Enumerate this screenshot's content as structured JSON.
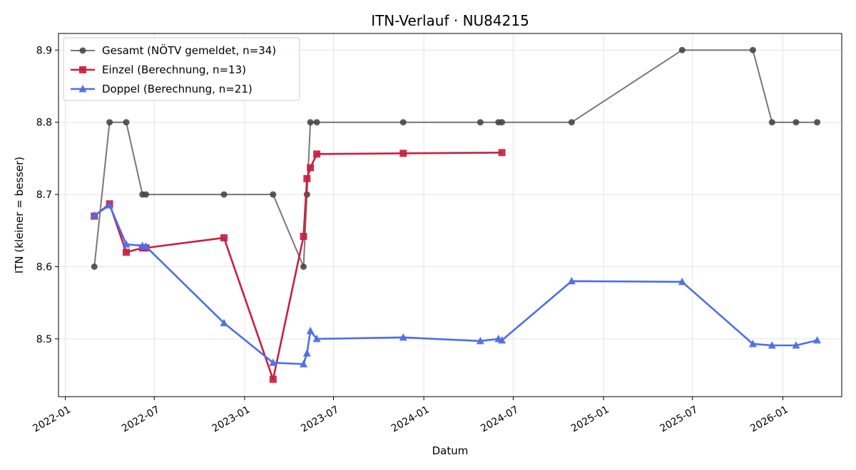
{
  "chart_data": {
    "type": "line",
    "title": "ITN-Verlauf · NU84215",
    "xlabel": "Datum",
    "ylabel": "ITN  (kleiner = besser)",
    "x_type": "date",
    "xlim": [
      "2021-12-18",
      "2026-05-01"
    ],
    "ylim": [
      8.42,
      8.923
    ],
    "x_ticks": [
      {
        "date": "2022-01-01",
        "label": "2022-01"
      },
      {
        "date": "2022-07-01",
        "label": "2022-07"
      },
      {
        "date": "2023-01-01",
        "label": "2023-01"
      },
      {
        "date": "2023-07-01",
        "label": "2023-07"
      },
      {
        "date": "2024-01-01",
        "label": "2024-01"
      },
      {
        "date": "2024-07-01",
        "label": "2024-07"
      },
      {
        "date": "2025-01-01",
        "label": "2025-01"
      },
      {
        "date": "2025-07-01",
        "label": "2025-07"
      },
      {
        "date": "2026-01-01",
        "label": "2026-01"
      }
    ],
    "y_ticks": [
      {
        "value": 8.5,
        "label": "8.5"
      },
      {
        "value": 8.6,
        "label": "8.6"
      },
      {
        "value": 8.7,
        "label": "8.7"
      },
      {
        "value": 8.8,
        "label": "8.8"
      },
      {
        "value": 8.9,
        "label": "8.9"
      }
    ],
    "grid": true,
    "legend_position": "top-left",
    "series": [
      {
        "name": "Gesamt (NÖTV gemeldet, n=34)",
        "color": "#444444",
        "marker": "circle",
        "points": [
          {
            "x": "2022-03-01",
            "y": 8.6
          },
          {
            "x": "2022-04-01",
            "y": 8.8
          },
          {
            "x": "2022-05-05",
            "y": 8.8
          },
          {
            "x": "2022-06-07",
            "y": 8.7
          },
          {
            "x": "2022-06-14",
            "y": 8.7
          },
          {
            "x": "2022-11-20",
            "y": 8.7
          },
          {
            "x": "2023-02-28",
            "y": 8.7
          },
          {
            "x": "2023-05-01",
            "y": 8.6
          },
          {
            "x": "2023-05-08",
            "y": 8.7
          },
          {
            "x": "2023-05-15",
            "y": 8.8
          },
          {
            "x": "2023-05-28",
            "y": 8.8
          },
          {
            "x": "2023-11-20",
            "y": 8.8
          },
          {
            "x": "2024-04-25",
            "y": 8.8
          },
          {
            "x": "2024-06-01",
            "y": 8.8
          },
          {
            "x": "2024-06-08",
            "y": 8.8
          },
          {
            "x": "2024-10-28",
            "y": 8.8
          },
          {
            "x": "2025-06-10",
            "y": 8.9
          },
          {
            "x": "2025-11-01",
            "y": 8.9
          },
          {
            "x": "2025-12-10",
            "y": 8.8
          },
          {
            "x": "2026-01-28",
            "y": 8.8
          },
          {
            "x": "2026-03-12",
            "y": 8.8
          }
        ]
      },
      {
        "name": "Einzel (Berechnung, n=13)",
        "color": "#c8203f",
        "marker": "square",
        "points": [
          {
            "x": "2022-03-01",
            "y": 8.67
          },
          {
            "x": "2022-04-01",
            "y": 8.687
          },
          {
            "x": "2022-05-05",
            "y": 8.62
          },
          {
            "x": "2022-06-07",
            "y": 8.626
          },
          {
            "x": "2022-06-14",
            "y": 8.626
          },
          {
            "x": "2022-11-20",
            "y": 8.64
          },
          {
            "x": "2023-02-28",
            "y": 8.444
          },
          {
            "x": "2023-05-01",
            "y": 8.642
          },
          {
            "x": "2023-05-08",
            "y": 8.722
          },
          {
            "x": "2023-05-15",
            "y": 8.737
          },
          {
            "x": "2023-05-28",
            "y": 8.756
          },
          {
            "x": "2023-11-20",
            "y": 8.757
          },
          {
            "x": "2024-06-08",
            "y": 8.758
          }
        ]
      },
      {
        "name": "Doppel (Berechnung, n=21)",
        "color": "#4d6ee8",
        "marker": "triangle",
        "points": [
          {
            "x": "2022-03-01",
            "y": 8.671
          },
          {
            "x": "2022-04-01",
            "y": 8.685
          },
          {
            "x": "2022-05-05",
            "y": 8.631
          },
          {
            "x": "2022-06-07",
            "y": 8.629
          },
          {
            "x": "2022-06-14",
            "y": 8.628
          },
          {
            "x": "2022-11-20",
            "y": 8.522
          },
          {
            "x": "2023-02-28",
            "y": 8.467
          },
          {
            "x": "2023-05-01",
            "y": 8.465
          },
          {
            "x": "2023-05-08",
            "y": 8.48
          },
          {
            "x": "2023-05-15",
            "y": 8.511
          },
          {
            "x": "2023-05-28",
            "y": 8.5
          },
          {
            "x": "2023-11-20",
            "y": 8.502
          },
          {
            "x": "2024-04-25",
            "y": 8.497
          },
          {
            "x": "2024-06-01",
            "y": 8.5
          },
          {
            "x": "2024-06-08",
            "y": 8.498
          },
          {
            "x": "2024-10-28",
            "y": 8.58
          },
          {
            "x": "2025-06-10",
            "y": 8.579
          },
          {
            "x": "2025-11-01",
            "y": 8.493
          },
          {
            "x": "2025-12-10",
            "y": 8.491
          },
          {
            "x": "2026-01-28",
            "y": 8.491
          },
          {
            "x": "2026-03-12",
            "y": 8.498
          }
        ]
      }
    ]
  }
}
